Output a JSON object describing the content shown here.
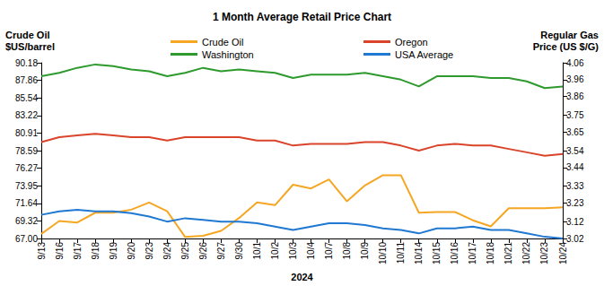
{
  "chart_data": {
    "type": "line",
    "title": "1 Month Average Retail Price Chart",
    "x_label": "2024",
    "y_label": "Crude Oil\n$US/barrel",
    "y2_label": "Regular Gas\nPrice (US $/G)",
    "categories": [
      "9/13",
      "9/16",
      "9/17",
      "9/18",
      "9/19",
      "9/20",
      "9/23",
      "9/24",
      "9/25",
      "9/26",
      "9/27",
      "9/30",
      "10/1",
      "10/2",
      "10/3",
      "10/4",
      "10/7",
      "10/8",
      "10/9",
      "10/10",
      "10/11",
      "10/14",
      "10/15",
      "10/16",
      "10/17",
      "10/18",
      "10/21",
      "10/22",
      "10/23",
      "10/24"
    ],
    "series": [
      {
        "name": "Crude Oil",
        "color": "#f5a623",
        "axis": "y",
        "values": [
          67.6,
          69.3,
          69.1,
          70.4,
          70.4,
          70.8,
          71.75,
          70.6,
          67.2,
          67.35,
          68.0,
          69.7,
          71.75,
          71.4,
          74.1,
          73.6,
          74.8,
          71.9,
          74.0,
          75.35,
          75.35,
          70.4,
          70.5,
          70.5,
          69.4,
          68.6,
          71.0,
          71.0,
          71.0,
          71.1
        ]
      },
      {
        "name": "Washington",
        "color": "#2e9a2e",
        "axis": "y2",
        "values": [
          3.98,
          4.0,
          4.03,
          4.05,
          4.04,
          4.02,
          4.01,
          3.98,
          4.0,
          4.03,
          4.01,
          4.02,
          4.01,
          4.0,
          3.97,
          3.99,
          3.99,
          3.99,
          4.0,
          3.98,
          3.96,
          3.92,
          3.98,
          3.98,
          3.98,
          3.97,
          3.97,
          3.95,
          3.91,
          3.92
        ]
      },
      {
        "name": "Oregon",
        "color": "#d9442b",
        "axis": "y2",
        "values": [
          3.59,
          3.62,
          3.63,
          3.64,
          3.63,
          3.62,
          3.62,
          3.6,
          3.62,
          3.62,
          3.62,
          3.62,
          3.6,
          3.6,
          3.57,
          3.58,
          3.58,
          3.58,
          3.59,
          3.59,
          3.57,
          3.54,
          3.57,
          3.58,
          3.57,
          3.57,
          3.55,
          3.53,
          3.51,
          3.52
        ]
      },
      {
        "name": "USA Average",
        "color": "#1f78d1",
        "axis": "y2",
        "values": [
          3.16,
          3.18,
          3.19,
          3.18,
          3.18,
          3.17,
          3.15,
          3.12,
          3.14,
          3.13,
          3.12,
          3.12,
          3.11,
          3.09,
          3.07,
          3.09,
          3.11,
          3.11,
          3.1,
          3.08,
          3.07,
          3.05,
          3.08,
          3.08,
          3.09,
          3.07,
          3.07,
          3.05,
          3.03,
          3.02
        ]
      }
    ],
    "ylim": [
      67,
      90.18
    ],
    "yticks": [
      {
        "value": 67,
        "label": "67.00"
      },
      69.32,
      71.64,
      73.95,
      76.27,
      78.59,
      80.91,
      83.22,
      85.54,
      87.86,
      90.18
    ],
    "y2lim": [
      3.02,
      4.06
    ],
    "y2ticks": [
      3.02,
      3.12,
      3.23,
      3.33,
      3.44,
      3.54,
      3.65,
      3.75,
      3.86,
      3.96,
      4.06
    ],
    "grid": false,
    "legend": "top"
  }
}
